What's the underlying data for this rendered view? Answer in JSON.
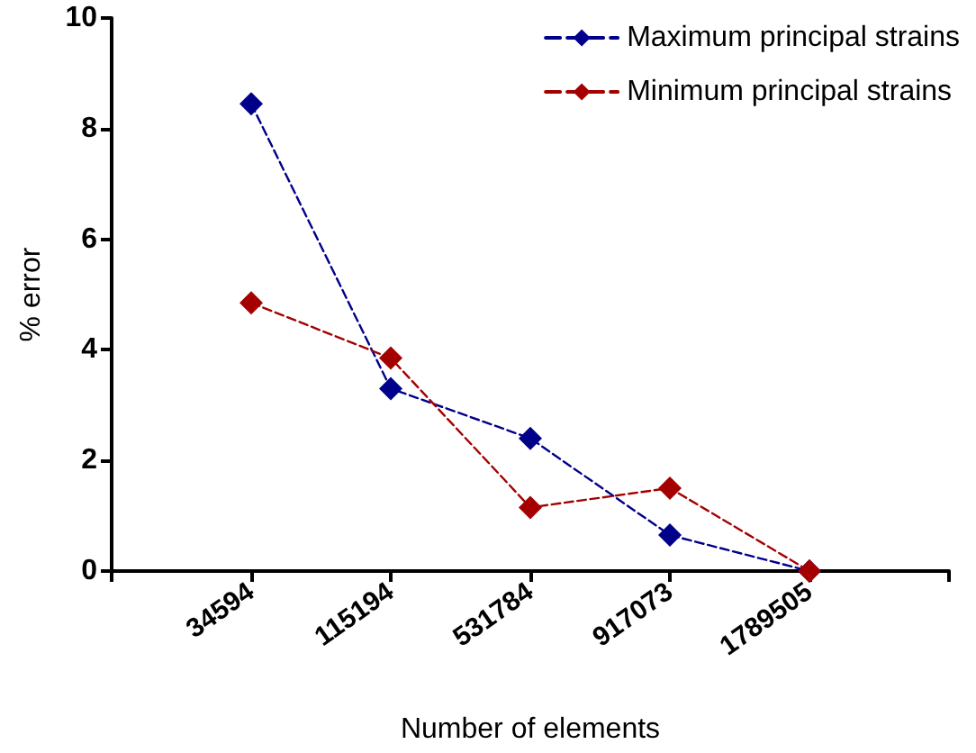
{
  "chart_data": {
    "type": "line",
    "xlabel": "Number of elements",
    "ylabel": "% error",
    "categories": [
      "34594",
      "115194",
      "531784",
      "917073",
      "1789505"
    ],
    "series": [
      {
        "name": "Maximum principal strains",
        "color": "#00008b",
        "values": [
          8.45,
          3.3,
          2.4,
          0.65,
          0
        ]
      },
      {
        "name": "Minimum principal strains",
        "color": "#a50000",
        "values": [
          4.85,
          3.85,
          1.15,
          1.5,
          0
        ]
      }
    ],
    "ylim": [
      0,
      10
    ],
    "yticks": [
      0,
      2,
      4,
      6,
      8,
      10
    ],
    "grid": false,
    "legend": "top right",
    "marker": "diamond",
    "line_style": "dashed"
  }
}
